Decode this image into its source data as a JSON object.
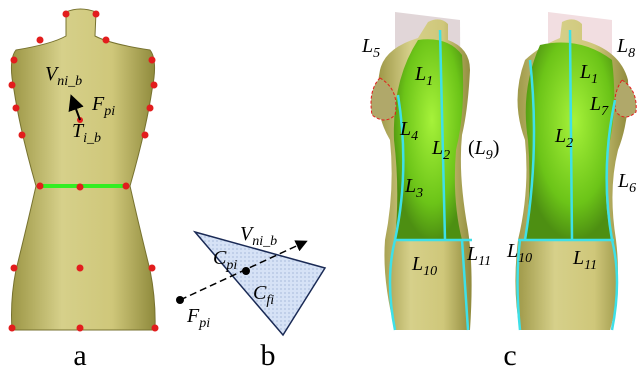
{
  "panels": [
    {
      "caption": "a",
      "labels": [
        {
          "base": "V",
          "sub": "ni_b"
        },
        {
          "base": "F",
          "sub": "pi"
        },
        {
          "base": "T",
          "sub": "i_b"
        }
      ]
    },
    {
      "caption": "b",
      "labels": [
        {
          "base": "V",
          "sub": "ni_b"
        },
        {
          "base": "C",
          "sub": "pi"
        },
        {
          "base": "C",
          "sub": "fi"
        },
        {
          "base": "F",
          "sub": "pi"
        }
      ]
    },
    {
      "caption": "c",
      "labels": [
        {
          "base": "L",
          "sub": "5"
        },
        {
          "base": "L",
          "sub": "1"
        },
        {
          "base": "L",
          "sub": "8"
        },
        {
          "base": "L",
          "sub": "1"
        },
        {
          "base": "L",
          "sub": "7"
        },
        {
          "base": "L",
          "sub": "4"
        },
        {
          "base": "L",
          "sub": "2"
        },
        {
          "prefix": "(",
          "base": "L",
          "sub": "9",
          "suffix": ")"
        },
        {
          "base": "L",
          "sub": "2"
        },
        {
          "base": "L",
          "sub": "3"
        },
        {
          "base": "L",
          "sub": "6"
        },
        {
          "base": "L",
          "sub": "10"
        },
        {
          "base": "L",
          "sub": "11"
        },
        {
          "base": "L",
          "sub": "10"
        },
        {
          "base": "L",
          "sub": "11"
        }
      ]
    }
  ]
}
